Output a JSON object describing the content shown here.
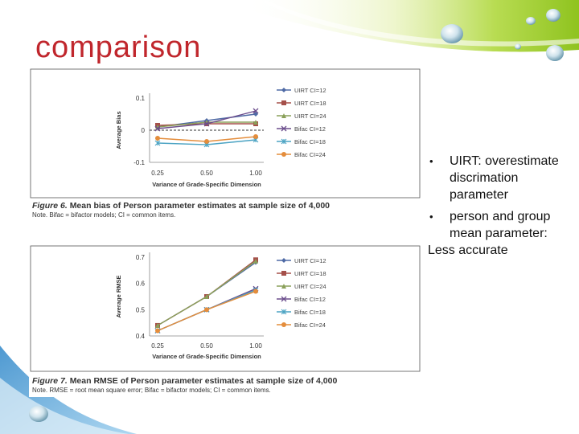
{
  "slide": {
    "title": "comparison",
    "bullets": [
      {
        "marker": "•",
        "text": "UIRT: overestimate discrimation parameter"
      },
      {
        "marker": "•",
        "text": " person and group mean parameter:"
      }
    ],
    "trailing_text": "Less accurate"
  },
  "theme": {
    "accent": "#c0262c",
    "green": "#9acd32"
  },
  "chart_data": [
    {
      "type": "line",
      "figure_label": "Figure 6.",
      "caption": "Mean bias of Person parameter estimates at sample size of 4,000",
      "note": "Note. Bifac = bifactor models; CI = common items.",
      "xlabel": "Variance of Grade-Specific Dimension",
      "ylabel": "Average Bias",
      "categories": [
        "0.25",
        "0.50",
        "1.00"
      ],
      "yticks": [
        "0.1",
        "0",
        "-0.1"
      ],
      "ylim": [
        -0.1,
        0.1
      ],
      "reference_line": 0,
      "legend_position": "right",
      "series": [
        {
          "name": "UIRT CI=12",
          "color": "#4f6aa5",
          "marker": "diamond",
          "values": [
            0.01,
            0.03,
            0.05
          ]
        },
        {
          "name": "UIRT CI=18",
          "color": "#a5504a",
          "marker": "square",
          "values": [
            0.015,
            0.02,
            0.02
          ]
        },
        {
          "name": "UIRT CI=24",
          "color": "#8aa05a",
          "marker": "triangle",
          "values": [
            0.01,
            0.025,
            0.025
          ]
        },
        {
          "name": "Bifac CI=12",
          "color": "#6b4d8c",
          "marker": "x",
          "values": [
            0.005,
            0.02,
            0.06
          ]
        },
        {
          "name": "Bifac CI=18",
          "color": "#4ba3c3",
          "marker": "star",
          "values": [
            -0.04,
            -0.045,
            -0.03
          ]
        },
        {
          "name": "Bifac CI=24",
          "color": "#e48d3c",
          "marker": "circle",
          "values": [
            -0.025,
            -0.035,
            -0.02
          ]
        }
      ]
    },
    {
      "type": "line",
      "figure_label": "Figure 7.",
      "caption": "Mean RMSE of Person parameter estimates at sample size of 4,000",
      "note": "Note. RMSE = root mean square error; Bifac = bifactor models; CI = common items.",
      "xlabel": "Variance of Grade-Specific Dimension",
      "ylabel": "Average RMSE",
      "categories": [
        "0.25",
        "0.50",
        "1.00"
      ],
      "yticks": [
        "0.7",
        "0.6",
        "0.5",
        "0.4"
      ],
      "ylim": [
        0.4,
        0.7
      ],
      "legend_position": "right",
      "series": [
        {
          "name": "UIRT CI=12",
          "color": "#4f6aa5",
          "marker": "diamond",
          "values": [
            0.44,
            0.55,
            0.68
          ]
        },
        {
          "name": "UIRT CI=18",
          "color": "#a5504a",
          "marker": "square",
          "values": [
            0.44,
            0.55,
            0.69
          ]
        },
        {
          "name": "UIRT CI=24",
          "color": "#8aa05a",
          "marker": "triangle",
          "values": [
            0.44,
            0.55,
            0.685
          ]
        },
        {
          "name": "Bifac CI=12",
          "color": "#6b4d8c",
          "marker": "x",
          "values": [
            0.42,
            0.5,
            0.58
          ]
        },
        {
          "name": "Bifac CI=18",
          "color": "#4ba3c3",
          "marker": "star",
          "values": [
            0.42,
            0.5,
            0.575
          ]
        },
        {
          "name": "Bifac CI=24",
          "color": "#e48d3c",
          "marker": "circle",
          "values": [
            0.42,
            0.5,
            0.57
          ]
        }
      ]
    }
  ]
}
